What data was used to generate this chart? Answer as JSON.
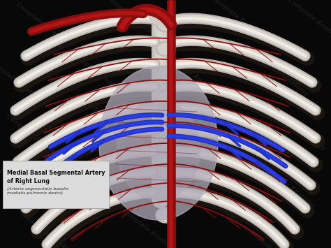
{
  "background_color": "#080808",
  "watermark_text": "Complete Anatomy",
  "watermark_color": "#252525",
  "label_box_facecolor": "#dcdcdc",
  "label_box_edgecolor": "#aaaaaa",
  "label_text_main": "Medial Basal Segmental Artery\nof Right Lung",
  "label_text_latin": "(Arteria segmentalis basalis\nmedialis pulmonis dextri)",
  "bone_color": "#d8d3cc",
  "bone_highlight": "#f0ece6",
  "bone_shadow_color": "#2a2520",
  "bone_mid": "#b8b2aa",
  "artery_color": "#8b0e0e",
  "artery_bright": "#cc1a1a",
  "blue_vessel": "#2233cc",
  "blue_vessel_bright": "#3344ee",
  "heart_fill": "#b0aab8",
  "heart_edge": "#9890a4",
  "spine_color": "#ccc8c0"
}
